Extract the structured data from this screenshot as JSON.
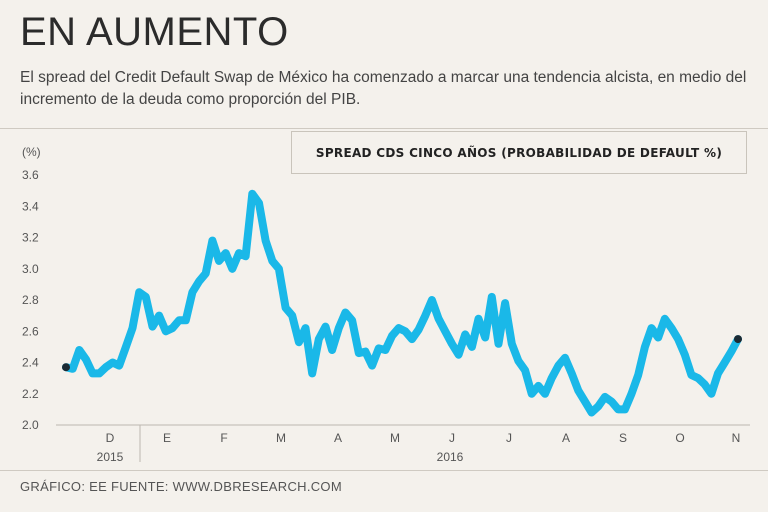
{
  "header": {
    "title": "EN AUMENTO",
    "subtitle": "El spread del Credit Default Swap de México ha comenzado a marcar una tendencia alcista, en medio del incremento de la deuda como proporción del PIB."
  },
  "footer": {
    "source": "GRÁFICO: EE  FUENTE: WWW.DBRESEARCH.COM"
  },
  "colors": {
    "line": "#1ab8e8",
    "marker": "#1b2a33",
    "background": "#f4f1ec"
  },
  "chart_data": {
    "type": "line",
    "title": "",
    "ylabel": "(%)",
    "xlabel": "",
    "ylim": [
      2.0,
      3.6
    ],
    "yticks": [
      2.0,
      2.2,
      2.4,
      2.6,
      2.8,
      3.0,
      3.2,
      3.4,
      3.6
    ],
    "grid": false,
    "legend_position": "top-right",
    "x_month_labels": [
      "D",
      "E",
      "F",
      "M",
      "A",
      "M",
      "J",
      "J",
      "A",
      "S",
      "O",
      "N"
    ],
    "x_year_labels": [
      "2015",
      "2016"
    ],
    "series": [
      {
        "name": "SPREAD CDS CINCO AÑOS (PROBABILIDAD DE DEFAULT %)",
        "values": [
          2.37,
          2.36,
          2.48,
          2.42,
          2.33,
          2.33,
          2.37,
          2.4,
          2.38,
          2.5,
          2.62,
          2.85,
          2.82,
          2.63,
          2.7,
          2.6,
          2.62,
          2.67,
          2.67,
          2.85,
          2.92,
          2.97,
          3.18,
          3.05,
          3.1,
          3.0,
          3.1,
          3.08,
          3.48,
          3.42,
          3.18,
          3.05,
          3.0,
          2.75,
          2.7,
          2.53,
          2.62,
          2.33,
          2.55,
          2.63,
          2.48,
          2.62,
          2.72,
          2.67,
          2.46,
          2.47,
          2.38,
          2.49,
          2.48,
          2.57,
          2.62,
          2.6,
          2.55,
          2.61,
          2.7,
          2.8,
          2.68,
          2.6,
          2.52,
          2.45,
          2.58,
          2.5,
          2.68,
          2.56,
          2.82,
          2.52,
          2.78,
          2.52,
          2.41,
          2.35,
          2.2,
          2.25,
          2.2,
          2.3,
          2.38,
          2.43,
          2.33,
          2.22,
          2.15,
          2.08,
          2.12,
          2.18,
          2.15,
          2.1,
          2.1,
          2.2,
          2.32,
          2.5,
          2.62,
          2.56,
          2.68,
          2.62,
          2.55,
          2.45,
          2.32,
          2.3,
          2.26,
          2.2,
          2.33,
          2.4,
          2.47,
          2.55
        ],
        "start_marker": 2.37,
        "end_marker": 2.55
      }
    ]
  }
}
